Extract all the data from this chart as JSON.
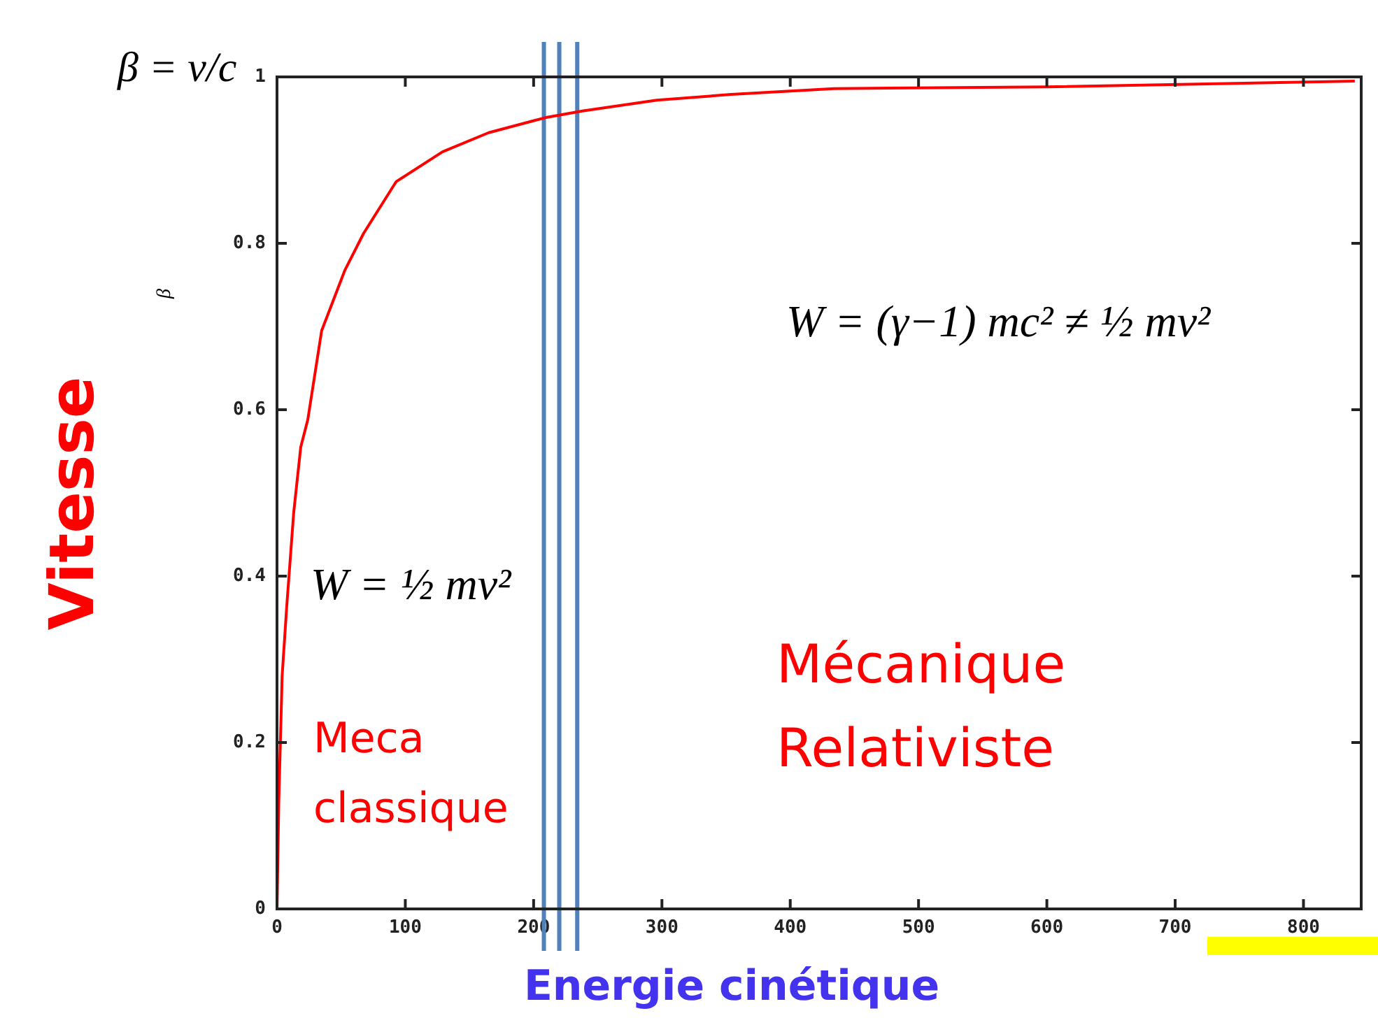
{
  "chart_data": {
    "type": "line",
    "xlabel": "Energie cinétique",
    "ylabel": "Vitesse",
    "x": [
      0,
      1.4,
      4,
      7.6,
      13,
      18.5,
      24,
      34.8,
      53,
      67.5,
      92.8,
      129,
      165,
      209,
      238,
      296,
      354,
      434,
      600,
      840
    ],
    "series": [
      {
        "color": "#ff0000",
        "values": [
          0,
          0.129,
          0.28,
          0.364,
          0.476,
          0.555,
          0.588,
          0.695,
          0.768,
          0.812,
          0.874,
          0.91,
          0.933,
          0.951,
          0.959,
          0.972,
          0.979,
          0.986,
          0.988,
          0.995
        ]
      }
    ],
    "xlim": [
      0,
      845
    ],
    "xticks": [
      0,
      100,
      200,
      300,
      400,
      500,
      600,
      700,
      800
    ],
    "ylim": [
      0,
      1
    ],
    "yticks": [
      0,
      0.2,
      0.4,
      0.6,
      0.8,
      1
    ],
    "grid": false,
    "legend": false,
    "marker": "none",
    "line_style": "solid",
    "ref_lines": [
      {
        "axis": "x",
        "value": 208,
        "color": "#4f81bd"
      },
      {
        "axis": "x",
        "value": 220,
        "color": "#4f81bd"
      },
      {
        "axis": "x",
        "value": 234,
        "color": "#4f81bd"
      }
    ],
    "annotations": [
      "β = v/c",
      "β",
      "W = (γ−1) mc² ≠ ½ mv²",
      "W = ½ mv²",
      "Meca\nclassique",
      "Mécanique\nRelativiste"
    ]
  }
}
